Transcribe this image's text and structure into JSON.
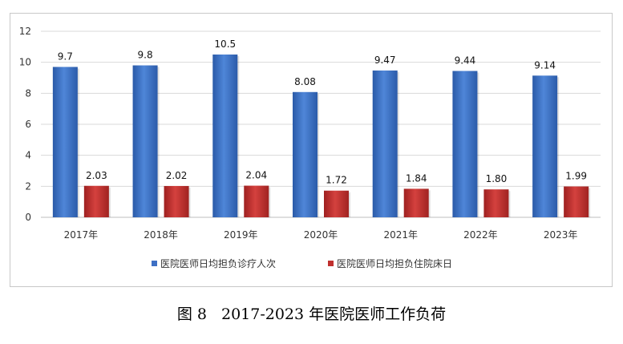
{
  "chart_data": {
    "type": "bar",
    "categories": [
      "2017年",
      "2018年",
      "2019年",
      "2020年",
      "2021年",
      "2022年",
      "2023年"
    ],
    "series": [
      {
        "name": "医院医师日均担负诊疗人次",
        "values": [
          9.7,
          9.8,
          10.5,
          8.08,
          9.47,
          9.44,
          9.14
        ],
        "labels": [
          "9.7",
          "9.8",
          "10.5",
          "8.08",
          "9.47",
          "9.44",
          "9.14"
        ],
        "color": "#3d6fc4"
      },
      {
        "name": "医院医师日均担负住院床日",
        "values": [
          2.03,
          2.02,
          2.04,
          1.72,
          1.84,
          1.8,
          1.99
        ],
        "labels": [
          "2.03",
          "2.02",
          "2.04",
          "1.72",
          "1.84",
          "1.80",
          "1.99"
        ],
        "color": "#c0302e"
      }
    ],
    "ylim": [
      0,
      12
    ],
    "yticks": [
      0,
      2,
      4,
      6,
      8,
      10,
      12
    ],
    "grid": true,
    "legend": "bottom"
  },
  "caption": {
    "label": "图 8",
    "title": "2017-2023 年医院医师工作负荷"
  }
}
